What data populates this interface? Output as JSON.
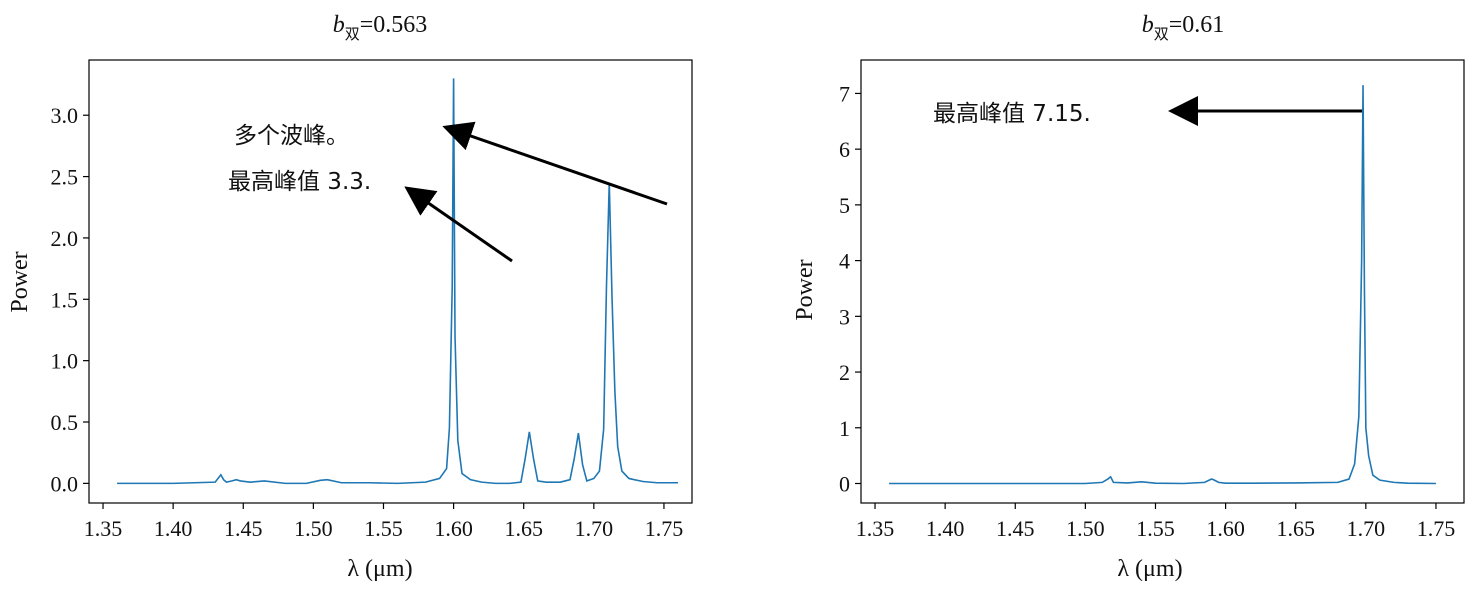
{
  "chart_data": [
    {
      "type": "line",
      "title": "b双=0.563",
      "title_parts": {
        "var": "b",
        "sub": "双",
        "rest": "=0.563"
      },
      "xlabel": "λ (μm)",
      "ylabel": "Power",
      "xlim": [
        1.34,
        1.77
      ],
      "ylim": [
        -0.16,
        3.45
      ],
      "xticks": [
        "1.35",
        "1.40",
        "1.45",
        "1.50",
        "1.55",
        "1.60",
        "1.65",
        "1.70",
        "1.75"
      ],
      "yticks": [
        "0.0",
        "0.5",
        "1.0",
        "1.5",
        "2.0",
        "2.5",
        "3.0"
      ],
      "line_color": "#1f77b4",
      "grid": false,
      "series": [
        {
          "x": [
            1.36,
            1.4,
            1.43,
            1.434,
            1.436,
            1.438,
            1.442,
            1.445,
            1.448,
            1.455,
            1.465,
            1.48,
            1.495,
            1.505,
            1.51,
            1.52,
            1.54,
            1.56,
            1.58,
            1.59,
            1.595,
            1.597,
            1.599,
            1.6,
            1.601,
            1.603,
            1.606,
            1.612,
            1.62,
            1.63,
            1.64,
            1.648,
            1.651,
            1.654,
            1.657,
            1.66,
            1.666,
            1.676,
            1.683,
            1.686,
            1.689,
            1.692,
            1.695,
            1.7,
            1.704,
            1.707,
            1.709,
            1.711,
            1.713,
            1.715,
            1.717,
            1.72,
            1.725,
            1.735,
            1.745,
            1.76
          ],
          "y": [
            0.0,
            0.0,
            0.01,
            0.07,
            0.03,
            0.01,
            0.02,
            0.03,
            0.02,
            0.01,
            0.02,
            0.0,
            0.0,
            0.025,
            0.03,
            0.005,
            0.005,
            0.0,
            0.01,
            0.04,
            0.12,
            0.45,
            1.6,
            3.3,
            1.2,
            0.35,
            0.08,
            0.03,
            0.01,
            0.0,
            0.0,
            0.01,
            0.2,
            0.42,
            0.2,
            0.02,
            0.01,
            0.01,
            0.03,
            0.2,
            0.41,
            0.15,
            0.02,
            0.04,
            0.1,
            0.44,
            1.6,
            2.45,
            1.5,
            0.75,
            0.3,
            0.1,
            0.04,
            0.015,
            0.005,
            0.005
          ]
        }
      ],
      "annotations": [
        {
          "text": "多个波峰。"
        },
        {
          "text": "最高峰值 3.3."
        }
      ]
    },
    {
      "type": "line",
      "title": "b双=0.61",
      "title_parts": {
        "var": "b",
        "sub": "双",
        "rest": "=0.61"
      },
      "xlabel": "λ (μm)",
      "ylabel": "Power",
      "xlim": [
        1.34,
        1.77
      ],
      "ylim": [
        -0.35,
        7.6
      ],
      "xticks": [
        "1.35",
        "1.40",
        "1.45",
        "1.50",
        "1.55",
        "1.60",
        "1.65",
        "1.70",
        "1.75"
      ],
      "yticks": [
        "0",
        "1",
        "2",
        "3",
        "4",
        "5",
        "6",
        "7"
      ],
      "line_color": "#1f77b4",
      "grid": false,
      "series": [
        {
          "x": [
            1.36,
            1.45,
            1.5,
            1.512,
            1.516,
            1.518,
            1.52,
            1.53,
            1.54,
            1.55,
            1.57,
            1.585,
            1.59,
            1.592,
            1.595,
            1.6,
            1.62,
            1.65,
            1.68,
            1.688,
            1.692,
            1.695,
            1.697,
            1.698,
            1.699,
            1.7,
            1.702,
            1.705,
            1.71,
            1.72,
            1.73,
            1.75
          ],
          "y": [
            0.0,
            0.0,
            0.0,
            0.02,
            0.08,
            0.12,
            0.02,
            0.01,
            0.03,
            0.005,
            0.0,
            0.02,
            0.08,
            0.06,
            0.02,
            0.005,
            0.005,
            0.01,
            0.02,
            0.08,
            0.35,
            1.2,
            4.0,
            7.15,
            3.5,
            1.0,
            0.5,
            0.15,
            0.06,
            0.02,
            0.005,
            0.0
          ]
        }
      ],
      "annotations": [
        {
          "text": "最高峰值   7.15."
        }
      ]
    }
  ]
}
